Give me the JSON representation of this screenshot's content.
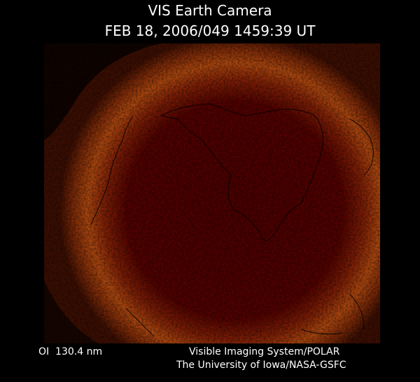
{
  "header": {
    "title": "VIS Earth Camera",
    "timestamp": "FEB 18, 2006/049 1459:39 UT"
  },
  "footer": {
    "wavelength": "OI  130.4 nm",
    "instrument": "Visible Imaging System/POLAR",
    "credit": "The University of Iowa/NASA-GSFC"
  }
}
